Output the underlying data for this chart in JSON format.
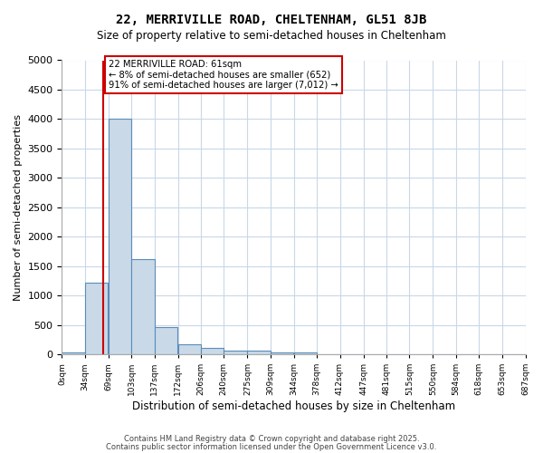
{
  "title": "22, MERRIVILLE ROAD, CHELTENHAM, GL51 8JB",
  "subtitle": "Size of property relative to semi-detached houses in Cheltenham",
  "xlabel": "Distribution of semi-detached houses by size in Cheltenham",
  "ylabel": "Number of semi-detached properties",
  "bin_labels": [
    "0sqm",
    "34sqm",
    "69sqm",
    "103sqm",
    "137sqm",
    "172sqm",
    "206sqm",
    "240sqm",
    "275sqm",
    "309sqm",
    "344sqm",
    "378sqm",
    "412sqm",
    "447sqm",
    "481sqm",
    "515sqm",
    "550sqm",
    "584sqm",
    "618sqm",
    "653sqm",
    "687sqm"
  ],
  "bin_edges": [
    0,
    34,
    69,
    103,
    137,
    172,
    206,
    240,
    275,
    309,
    344,
    378,
    412,
    447,
    481,
    515,
    550,
    584,
    618,
    653,
    687
  ],
  "bar_heights": [
    30,
    1220,
    4000,
    1620,
    470,
    175,
    110,
    60,
    55,
    30,
    30,
    0,
    0,
    0,
    0,
    0,
    0,
    0,
    0,
    0
  ],
  "bar_color": "#c9d9e8",
  "bar_edge_color": "#5b8db8",
  "property_size": 61,
  "red_line_color": "#cc0000",
  "annotation_text": "22 MERRIVILLE ROAD: 61sqm\n← 8% of semi-detached houses are smaller (652)\n91% of semi-detached houses are larger (7,012) →",
  "annotation_box_color": "#cc0000",
  "ylim": [
    0,
    5000
  ],
  "yticks": [
    0,
    500,
    1000,
    1500,
    2000,
    2500,
    3000,
    3500,
    4000,
    4500,
    5000
  ],
  "footnote1": "Contains HM Land Registry data © Crown copyright and database right 2025.",
  "footnote2": "Contains public sector information licensed under the Open Government Licence v3.0.",
  "background_color": "#ffffff",
  "grid_color": "#c8d8e8"
}
